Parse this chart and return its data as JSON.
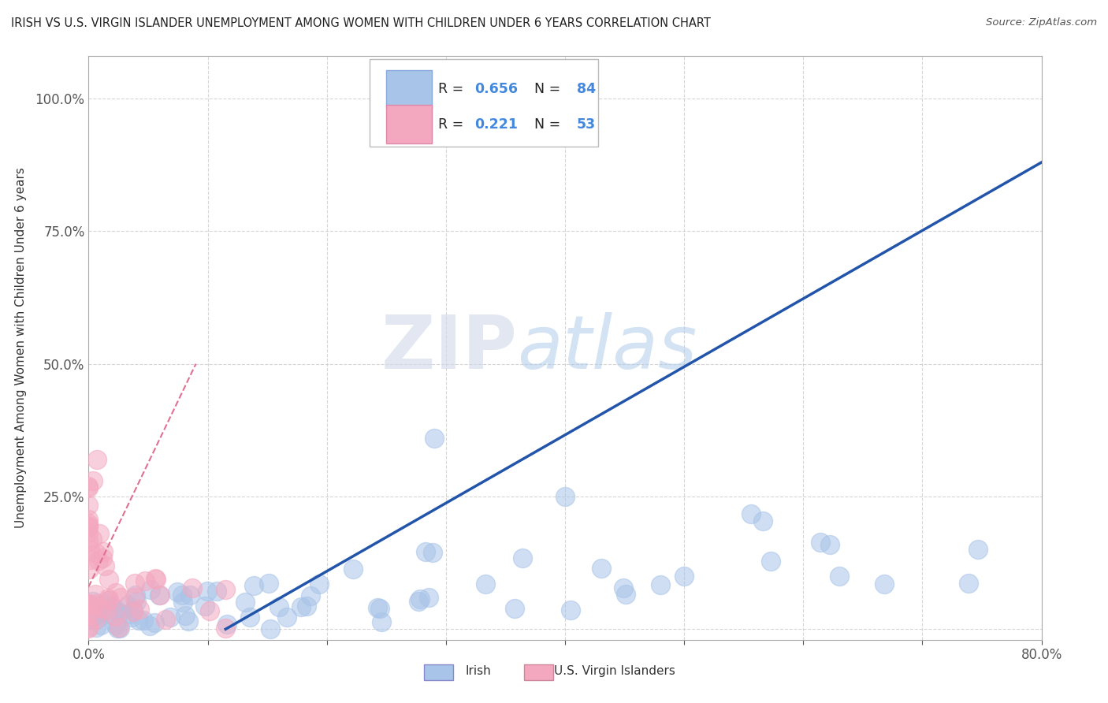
{
  "title": "IRISH VS U.S. VIRGIN ISLANDER UNEMPLOYMENT AMONG WOMEN WITH CHILDREN UNDER 6 YEARS CORRELATION CHART",
  "source": "Source: ZipAtlas.com",
  "ylabel": "Unemployment Among Women with Children Under 6 years",
  "xlim": [
    0.0,
    0.8
  ],
  "ylim": [
    -0.02,
    1.08
  ],
  "xticks": [
    0.0,
    0.1,
    0.2,
    0.3,
    0.4,
    0.5,
    0.6,
    0.7,
    0.8
  ],
  "xtick_labels": [
    "0.0%",
    "",
    "",
    "",
    "",
    "",
    "",
    "",
    "80.0%"
  ],
  "ytick_labels": [
    "",
    "25.0%",
    "50.0%",
    "75.0%",
    "100.0%"
  ],
  "yticks": [
    0.0,
    0.25,
    0.5,
    0.75,
    1.0
  ],
  "irish_R": 0.656,
  "irish_N": 84,
  "vi_R": 0.221,
  "vi_N": 53,
  "irish_color": "#a8c4e8",
  "vi_color": "#f4a8c0",
  "irish_line_color": "#2255aa",
  "vi_line_color": "#e07090",
  "watermark_zip": "ZIP",
  "watermark_atlas": "atlas",
  "legend_R_color": "#4488dd",
  "legend_N_color": "#4488dd",
  "background_color": "#ffffff",
  "irish_line_x0": 0.115,
  "irish_line_y0": 0.0,
  "irish_line_x1": 0.8,
  "irish_line_y1": 0.88,
  "vi_line_x0": 0.0,
  "vi_line_y0": 0.08,
  "vi_line_x1": 0.09,
  "vi_line_y1": 0.5
}
